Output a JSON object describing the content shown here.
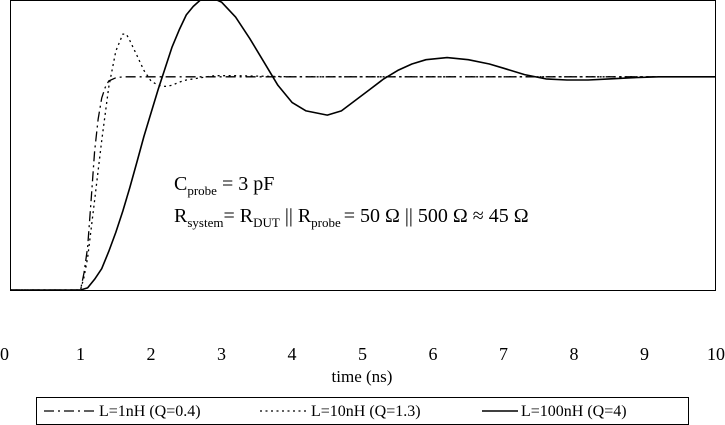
{
  "chart_data": {
    "type": "line",
    "xlabel": "time (ns)",
    "ylabel": "",
    "xlim": [
      0,
      10
    ],
    "ylim": [
      0,
      1.36
    ],
    "xticks": [
      "0",
      "1",
      "2",
      "3",
      "4",
      "5",
      "6",
      "7",
      "8",
      "9",
      "10"
    ],
    "grid": false,
    "legend_position": "bottom",
    "annotation": {
      "line1": {
        "c": "C",
        "c_sub": "probe",
        "eq": " = 3 pF"
      },
      "line2": {
        "r1": "R",
        "r1_sub": "system",
        "eq1": "= R",
        "r2_sub": "DUT",
        "par1": " || R",
        "r3_sub": "probe",
        "tail": "= 50 Ω || 500 Ω ≈ 45 Ω"
      }
    },
    "series": [
      {
        "name": "L=1nH (Q=0.4)",
        "style": "dashdot",
        "x": [
          0,
          1.0,
          1.05,
          1.1,
          1.15,
          1.2,
          1.25,
          1.3,
          1.35,
          1.4,
          1.5,
          1.6,
          1.8,
          2.0,
          3.0,
          5.0,
          7.0,
          9.0,
          10.0
        ],
        "y": [
          0,
          0,
          0.08,
          0.2,
          0.42,
          0.65,
          0.8,
          0.9,
          0.95,
          0.98,
          0.995,
          1.0,
          1.0,
          1.0,
          1.0,
          1.0,
          1.0,
          1.0,
          1.0
        ]
      },
      {
        "name": "L=10nH (Q=1.3)",
        "style": "dotted",
        "x": [
          0,
          1.0,
          1.05,
          1.1,
          1.2,
          1.3,
          1.4,
          1.5,
          1.6,
          1.65,
          1.7,
          1.8,
          1.9,
          2.0,
          2.1,
          2.2,
          2.3,
          2.4,
          2.5,
          2.7,
          2.9,
          3.2,
          4.0,
          6.0,
          8.0,
          10.0
        ],
        "y": [
          0,
          0,
          0.06,
          0.15,
          0.42,
          0.7,
          0.95,
          1.12,
          1.2,
          1.2,
          1.17,
          1.1,
          1.03,
          0.98,
          0.96,
          0.955,
          0.96,
          0.975,
          0.985,
          0.995,
          1.005,
          1.005,
          1.0,
          1.0,
          1.0,
          1.0
        ]
      },
      {
        "name": "L=100nH (Q=4)",
        "style": "solid",
        "x": [
          0,
          1.0,
          1.1,
          1.2,
          1.3,
          1.4,
          1.5,
          1.6,
          1.7,
          1.8,
          1.9,
          2.0,
          2.1,
          2.2,
          2.3,
          2.4,
          2.5,
          2.6,
          2.7,
          2.8,
          2.9,
          3.0,
          3.2,
          3.4,
          3.6,
          3.8,
          4.0,
          4.2,
          4.5,
          4.7,
          4.9,
          5.1,
          5.3,
          5.5,
          5.7,
          5.9,
          6.2,
          6.5,
          6.8,
          7.0,
          7.3,
          7.6,
          7.9,
          8.2,
          8.5,
          8.8,
          9.2,
          9.6,
          10.0
        ],
        "y": [
          0,
          0,
          0.01,
          0.05,
          0.1,
          0.18,
          0.27,
          0.37,
          0.48,
          0.6,
          0.72,
          0.83,
          0.94,
          1.04,
          1.14,
          1.22,
          1.29,
          1.33,
          1.36,
          1.37,
          1.365,
          1.35,
          1.28,
          1.18,
          1.07,
          0.96,
          0.88,
          0.84,
          0.82,
          0.84,
          0.89,
          0.94,
          0.99,
          1.03,
          1.06,
          1.08,
          1.09,
          1.08,
          1.06,
          1.04,
          1.01,
          0.99,
          0.985,
          0.985,
          0.99,
          0.995,
          1.0,
          1.0,
          1.0
        ]
      }
    ]
  }
}
